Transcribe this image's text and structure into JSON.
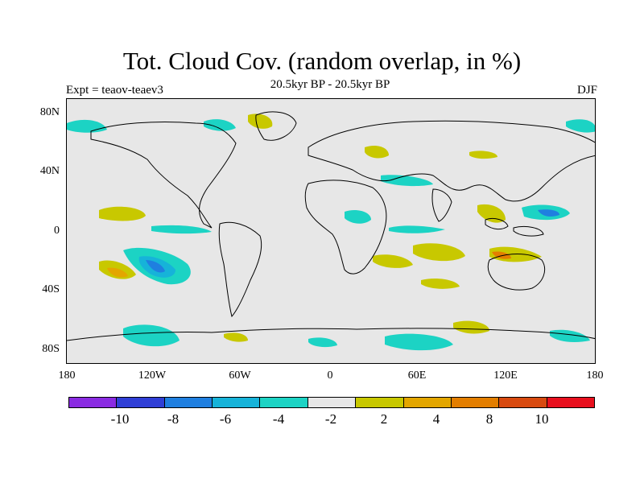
{
  "title": "Tot. Cloud Cov. (random overlap, in %)",
  "subtitle": "20.5kyr BP - 20.5kyr BP",
  "left_label": "Expt = teaov-teaev3",
  "right_label": "DJF",
  "lat_labels": [
    "80N",
    "40N",
    "0",
    "40S",
    "80S"
  ],
  "lon_labels": [
    "180",
    "120W",
    "60W",
    "0",
    "60E",
    "120E",
    "180"
  ],
  "colorbar": {
    "colors": [
      "#8a2be2",
      "#2f3fd6",
      "#1f7fe0",
      "#16b3d9",
      "#1cd3c4",
      "#e7e7e7",
      "#c8c800",
      "#e3a600",
      "#e37e00",
      "#d84a10",
      "#e8101e"
    ],
    "labels": [
      "-10",
      "-8",
      "-6",
      "-4",
      "-2",
      "2",
      "4",
      "8",
      "10"
    ]
  }
}
